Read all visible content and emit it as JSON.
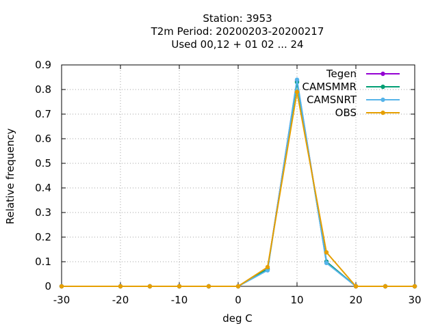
{
  "chart_data": {
    "type": "line",
    "title_lines": [
      "Station:     3953",
      "T2m  Period: 20200203-20200217",
      "Used  00,12  + 01 02 ... 24"
    ],
    "xlabel": "deg C",
    "ylabel": "Relative frequency",
    "xlim": [
      -30,
      30
    ],
    "ylim": [
      0,
      0.9
    ],
    "xticks": [
      -30,
      -20,
      -10,
      0,
      10,
      20,
      30
    ],
    "yticks": [
      0,
      0.1,
      0.2,
      0.3,
      0.4,
      0.5,
      0.6,
      0.7,
      0.8,
      0.9
    ],
    "xtick_labels": [
      "-30",
      "-20",
      "-10",
      "0",
      "10",
      "20",
      "30"
    ],
    "ytick_labels": [
      "0",
      "0.1",
      "0.2",
      "0.3",
      "0.4",
      "0.5",
      "0.6",
      "0.7",
      "0.8",
      "0.9"
    ],
    "grid": true,
    "legend_position": "top-right",
    "x": [
      -30,
      -20,
      -15,
      -10,
      -5,
      0,
      5,
      10,
      15,
      20,
      25,
      30
    ],
    "series": [
      {
        "name": "Tegen",
        "color": "#9400d3",
        "values": [
          0,
          0,
          0,
          0,
          0,
          0,
          0.07,
          0.835,
          0.1,
          0,
          0,
          0
        ]
      },
      {
        "name": "CAMSMMR",
        "color": "#009e73",
        "values": [
          0,
          0,
          0,
          0,
          0,
          0,
          0.07,
          0.83,
          0.1,
          0,
          0,
          0
        ]
      },
      {
        "name": "CAMSNRT",
        "color": "#56b4e9",
        "values": [
          0,
          0,
          0,
          0,
          0,
          0,
          0.065,
          0.84,
          0.095,
          0,
          0,
          0
        ]
      },
      {
        "name": "OBS",
        "color": "#e69f00",
        "values": [
          0,
          0,
          0,
          0,
          0,
          0,
          0.078,
          0.79,
          0.138,
          0,
          0,
          0
        ]
      }
    ]
  }
}
